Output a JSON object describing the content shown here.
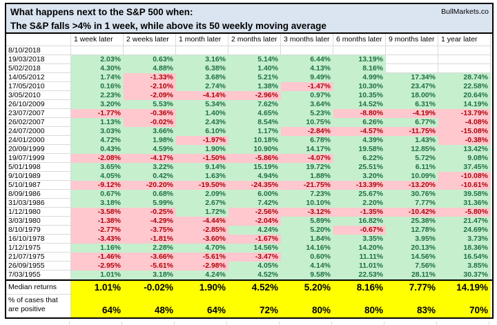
{
  "title": {
    "line1": "What happens next to the S&P 500 when:",
    "line2": "The S&P falls >4% in 1 week, while above its 50 weekly moving average",
    "brand": "BullMarkets.co"
  },
  "table": {
    "columns": [
      "1 week later",
      "2 weeks later",
      "1 month later",
      "2 months later",
      "3 months later",
      "6 months later",
      "9 months later",
      "1 year later"
    ],
    "rows": [
      {
        "date": "8/10/2018",
        "values": [
          "",
          "",
          "",
          "",
          "",
          "",
          "",
          ""
        ]
      },
      {
        "date": "19/03/2018",
        "values": [
          "2.03%",
          "0.63%",
          "3.16%",
          "5.14%",
          "6.44%",
          "13.19%",
          "",
          ""
        ]
      },
      {
        "date": "5/02/2018",
        "values": [
          "4.30%",
          "4.88%",
          "6.38%",
          "1.40%",
          "4.13%",
          "8.16%",
          "",
          ""
        ]
      },
      {
        "date": "14/05/2012",
        "values": [
          "1.74%",
          "-1.33%",
          "3.68%",
          "5.21%",
          "9.49%",
          "4.99%",
          "17.34%",
          "28.74%"
        ]
      },
      {
        "date": "17/05/2010",
        "values": [
          "0.16%",
          "-2.10%",
          "2.74%",
          "1.38%",
          "-1.47%",
          "10.30%",
          "23.47%",
          "22.58%"
        ]
      },
      {
        "date": "3/05/2010",
        "values": [
          "2.23%",
          "-2.09%",
          "-4.14%",
          "-2.96%",
          "0.97%",
          "10.35%",
          "18.00%",
          "20.64%"
        ]
      },
      {
        "date": "26/10/2009",
        "values": [
          "3.20%",
          "5.53%",
          "5.34%",
          "7.62%",
          "3.64%",
          "14.52%",
          "6.31%",
          "14.19%"
        ]
      },
      {
        "date": "23/07/2007",
        "values": [
          "-1.77%",
          "-0.36%",
          "1.40%",
          "4.65%",
          "5.23%",
          "-8.80%",
          "-4.19%",
          "-13.79%"
        ]
      },
      {
        "date": "26/02/2007",
        "values": [
          "1.13%",
          "-0.02%",
          "2.43%",
          "8.54%",
          "10.75%",
          "6.26%",
          "6.77%",
          "-4.08%"
        ]
      },
      {
        "date": "24/07/2000",
        "values": [
          "3.03%",
          "3.66%",
          "6.10%",
          "1.17%",
          "-2.84%",
          "-4.57%",
          "-11.75%",
          "-15.08%"
        ]
      },
      {
        "date": "24/01/2000",
        "values": [
          "4.72%",
          "1.98%",
          "-1.97%",
          "10.18%",
          "6.78%",
          "4.39%",
          "1.43%",
          "-0.38%"
        ]
      },
      {
        "date": "20/09/1999",
        "values": [
          "0.43%",
          "4.59%",
          "1.90%",
          "10.90%",
          "14.17%",
          "19.58%",
          "12.85%",
          "13.42%"
        ]
      },
      {
        "date": "19/07/1999",
        "values": [
          "-2.08%",
          "-4.17%",
          "-1.50%",
          "-5.86%",
          "-4.07%",
          "6.22%",
          "5.72%",
          "9.08%"
        ]
      },
      {
        "date": "5/01/1998",
        "values": [
          "3.65%",
          "3.22%",
          "9.14%",
          "15.19%",
          "19.72%",
          "25.51%",
          "6.11%",
          "37.45%"
        ]
      },
      {
        "date": "9/10/1989",
        "values": [
          "4.05%",
          "0.42%",
          "1.63%",
          "4.94%",
          "1.88%",
          "3.20%",
          "10.09%",
          "-10.08%"
        ]
      },
      {
        "date": "5/10/1987",
        "values": [
          "-9.12%",
          "-20.20%",
          "-19.50%",
          "-24.35%",
          "-21.75%",
          "-13.39%",
          "-13.20%",
          "-10.61%"
        ]
      },
      {
        "date": "8/09/1986",
        "values": [
          "0.67%",
          "0.68%",
          "2.09%",
          "6.00%",
          "7.23%",
          "25.67%",
          "30.76%",
          "39.58%"
        ]
      },
      {
        "date": "31/03/1986",
        "values": [
          "3.18%",
          "5.99%",
          "2.67%",
          "7.42%",
          "10.10%",
          "2.20%",
          "7.77%",
          "31.36%"
        ]
      },
      {
        "date": "1/12/1980",
        "values": [
          "-3.58%",
          "-0.25%",
          "1.72%",
          "-2.56%",
          "-3.12%",
          "-1.35%",
          "-10.42%",
          "-5.80%"
        ]
      },
      {
        "date": "3/03/1980",
        "values": [
          "-1.38%",
          "-4.29%",
          "-4.44%",
          "-2.04%",
          "5.89%",
          "16.82%",
          "25.38%",
          "21.47%"
        ]
      },
      {
        "date": "8/10/1979",
        "values": [
          "-2.77%",
          "-3.75%",
          "-2.85%",
          "4.24%",
          "5.20%",
          "-0.67%",
          "12.78%",
          "24.69%"
        ]
      },
      {
        "date": "16/10/1978",
        "values": [
          "-3.43%",
          "-1.81%",
          "-3.60%",
          "-1.67%",
          "1.84%",
          "3.35%",
          "3.95%",
          "3.73%"
        ]
      },
      {
        "date": "1/12/1975",
        "values": [
          "1.16%",
          "2.28%",
          "4.70%",
          "14.56%",
          "14.16%",
          "14.20%",
          "20.13%",
          "18.36%"
        ]
      },
      {
        "date": "21/07/1975",
        "values": [
          "-1.46%",
          "-3.66%",
          "-5.61%",
          "-3.47%",
          "0.60%",
          "11.11%",
          "14.56%",
          "16.54%"
        ]
      },
      {
        "date": "26/09/1955",
        "values": [
          "-2.95%",
          "-5.61%",
          "-2.98%",
          "4.05%",
          "4.14%",
          "11.01%",
          "7.56%",
          "3.85%"
        ]
      },
      {
        "date": "7/03/1955",
        "values": [
          "1.01%",
          "3.18%",
          "4.24%",
          "4.52%",
          "9.58%",
          "22.53%",
          "28.11%",
          "30.37%"
        ]
      }
    ],
    "summary": {
      "median_label": "Median returns",
      "median_values": [
        "1.01%",
        "-0.02%",
        "1.90%",
        "4.52%",
        "5.20%",
        "8.16%",
        "7.77%",
        "14.19%"
      ],
      "positive_label": "% of cases that are positive",
      "positive_values": [
        "64%",
        "48%",
        "64%",
        "72%",
        "80%",
        "80%",
        "83%",
        "70%"
      ]
    }
  },
  "colors": {
    "title_bg": "#dbe5f1",
    "positive_bg": "#c6efce",
    "positive_text": "#1d7044",
    "negative_bg": "#ffc7ce",
    "negative_text": "#b00009",
    "summary_bg": "#ffff00",
    "gridline": "#d9d9d9"
  }
}
